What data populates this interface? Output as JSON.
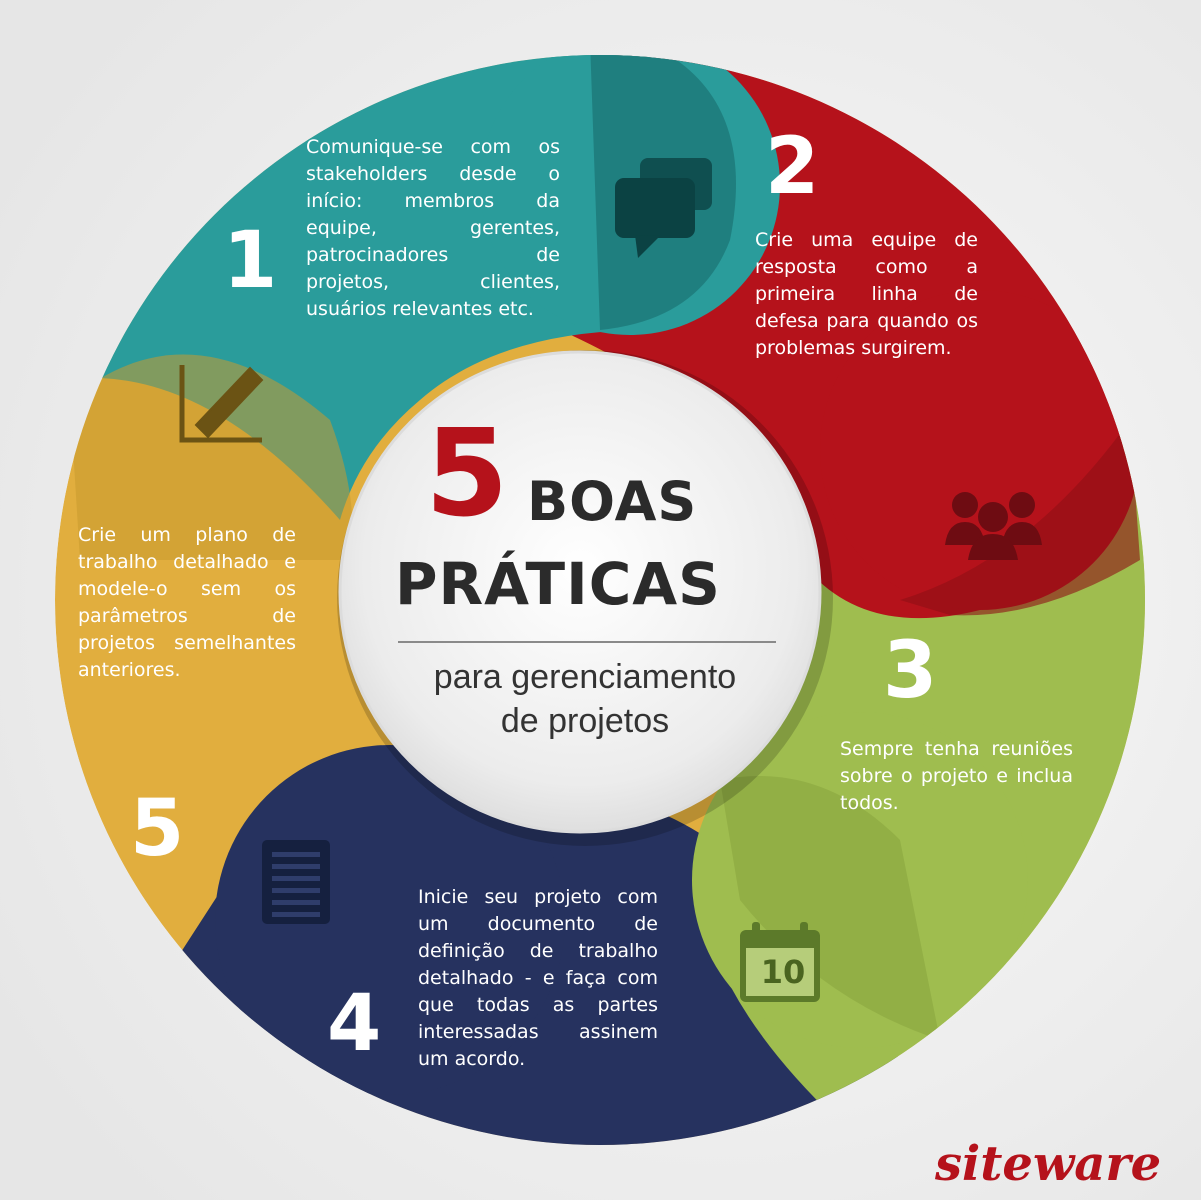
{
  "title": {
    "number": "5",
    "line1": "BOAS",
    "line2": "PRÁTICAS",
    "subtitle_line1": "para gerenciamento",
    "subtitle_line2": "de projetos"
  },
  "practices": [
    {
      "number": "1",
      "color": "#2a9c9b",
      "icon": "chat-bubbles-icon",
      "text": "Comunique-se com os stakeholders desde o início: membros da equipe, gerentes, patrocinadores de projetos, clientes, usuários relevantes etc."
    },
    {
      "number": "2",
      "color": "#b5121b",
      "icon": "group-people-icon",
      "text": "Crie uma equipe de resposta como a primeira linha de defesa para quando os problemas surgirem."
    },
    {
      "number": "3",
      "color": "#9fbd4f",
      "icon": "calendar-icon",
      "calendar_day": "10",
      "text": "Sempre tenha reuniões sobre o projeto e inclua todos."
    },
    {
      "number": "4",
      "color": "#26325f",
      "icon": "document-icon",
      "text": "Inicie seu projeto com um documento de definição de trabalho detalhado - e faça com que todas as partes interessadas assinem um acordo."
    },
    {
      "number": "5",
      "color": "#e1ae3e",
      "icon": "pencil-chart-icon",
      "text": "Crie um plano de trabalho detalhado e modele-o sem os parâmetros de projetos semelhantes anteriores."
    }
  ],
  "brand": {
    "logo": "siteware",
    "color": "#b5121b"
  }
}
